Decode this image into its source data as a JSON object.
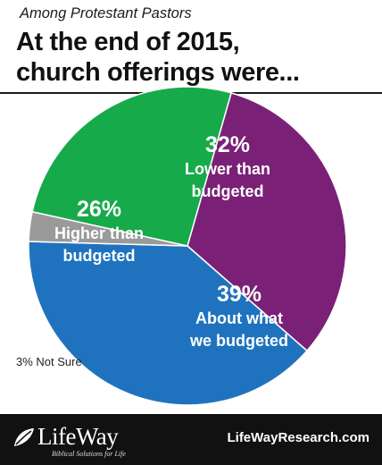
{
  "header": {
    "subtitle": "Among Protestant Pastors",
    "title_line1": "At the end of 2015,",
    "title_line2": "church offerings were..."
  },
  "chart_data": {
    "type": "pie",
    "slices": [
      {
        "name": "Lower than budgeted",
        "pct_label": "32%",
        "label_line1": "Lower than",
        "label_line2": "budgeted",
        "value": 32,
        "color": "#7a2177"
      },
      {
        "name": "About what we budgeted",
        "pct_label": "39%",
        "label_line1": "About what",
        "label_line2": "we budgeted",
        "value": 39,
        "color": "#1f73be"
      },
      {
        "name": "Not Sure",
        "pct_label": "3% Not Sure",
        "value": 3,
        "color": "#9a9a9a"
      },
      {
        "name": "Higher than budgeted",
        "pct_label": "26%",
        "label_line1": "Higher than",
        "label_line2": "budgeted",
        "value": 26,
        "color": "#17aa4b"
      }
    ]
  },
  "footer": {
    "logo_text": "LifeWay",
    "logo_tagline": "Biblical Solutions for Life",
    "website": "LifeWayResearch.com"
  },
  "colors": {
    "purple": "#7a2177",
    "blue": "#1f73be",
    "green": "#17aa4b",
    "gray": "#9a9a9a",
    "footer_bg": "#111111"
  }
}
